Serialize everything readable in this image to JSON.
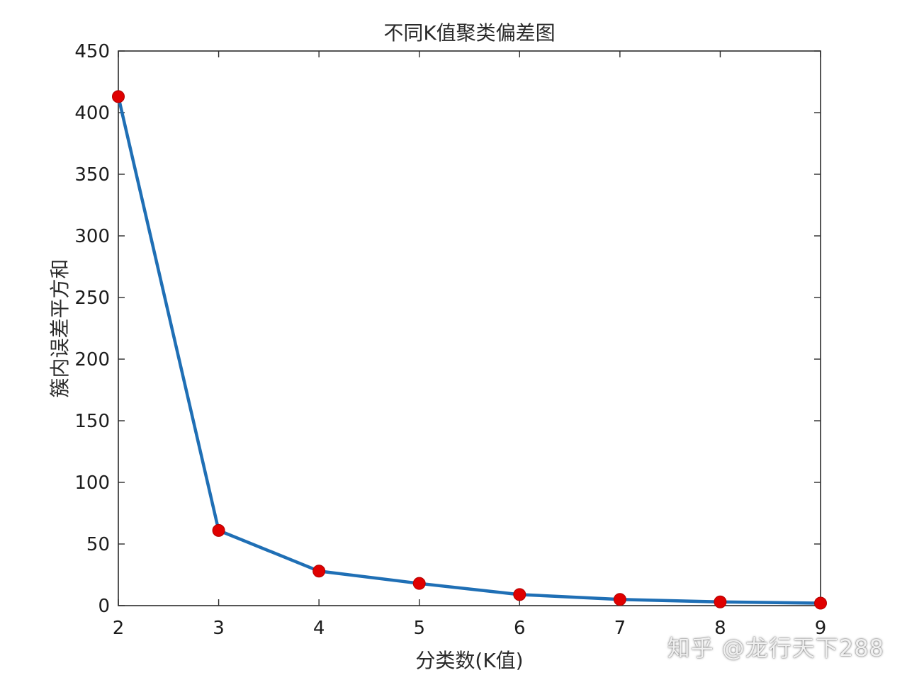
{
  "watermark": "知乎 @龙行天下288",
  "colors": {
    "line": "#1f6fb5",
    "marker": "#e00000",
    "axis": "#2b2b2b"
  },
  "chart_data": {
    "type": "line",
    "title": "不同K值聚类偏差图",
    "xlabel": "分类数(K值)",
    "ylabel": "簇内误差平方和",
    "x": [
      2,
      3,
      4,
      5,
      6,
      7,
      8,
      9
    ],
    "series": [
      {
        "values": [
          413,
          61,
          28,
          18,
          9,
          5,
          3,
          2
        ]
      }
    ],
    "xlim": [
      2,
      9
    ],
    "ylim": [
      0,
      450
    ],
    "xticks": [
      2,
      3,
      4,
      5,
      6,
      7,
      8,
      9
    ],
    "yticks": [
      0,
      50,
      100,
      150,
      200,
      250,
      300,
      350,
      400,
      450
    ],
    "grid": false,
    "markers": true
  }
}
